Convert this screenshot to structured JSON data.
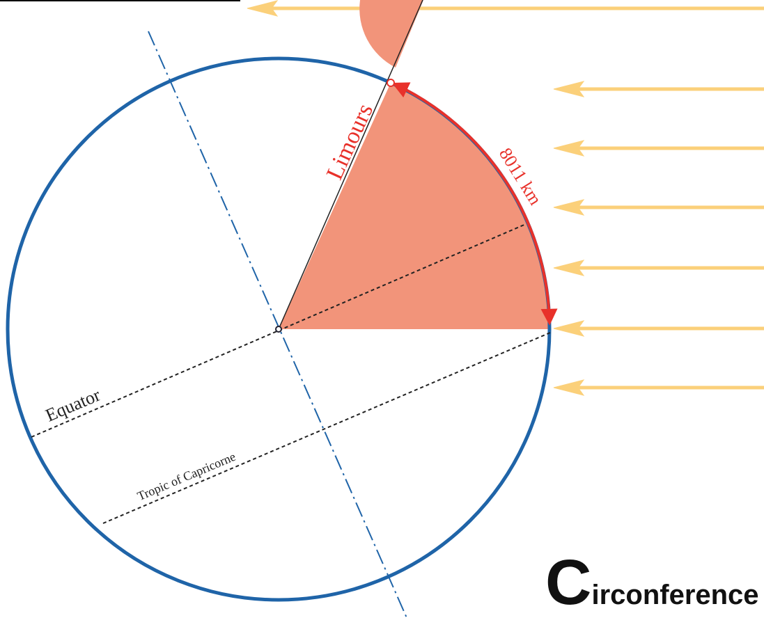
{
  "labels": {
    "city": "Limours",
    "arc_length": "8011 km",
    "equator": "Equator",
    "tropic": "Tropic of Capricorne"
  },
  "title": {
    "initial": "C",
    "rest": "irconference"
  }
}
